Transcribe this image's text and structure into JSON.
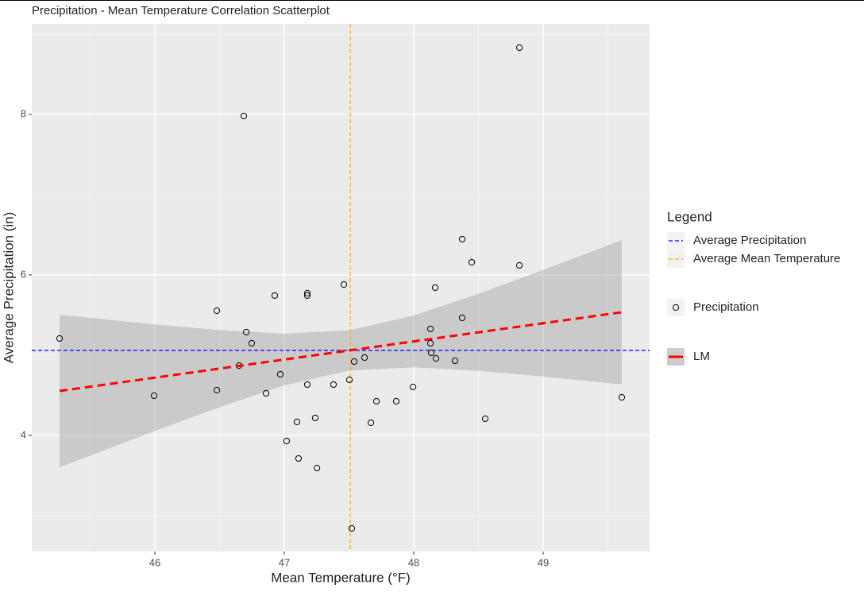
{
  "chart_data": {
    "type": "scatter",
    "title": "Precipitation - Mean Temperature Correlation Scatterplot",
    "x_label": "Mean Temperature (°F)",
    "y_label": "Average Precipitation (in)",
    "xlim": [
      45.049,
      49.822
    ],
    "ylim": [
      2.554,
      9.129
    ],
    "xticks": [
      46,
      47,
      48,
      49
    ],
    "yticks": [
      4,
      6,
      8
    ],
    "grid": true,
    "legend_title": "Legend",
    "legend_position": "right",
    "name": "Precipitation",
    "color": "#000000",
    "x": [
      45.264,
      45.994,
      46.479,
      46.479,
      46.687,
      46.706,
      46.65,
      46.748,
      46.859,
      46.926,
      46.969,
      47.018,
      47.098,
      47.11,
      47.178,
      47.178,
      47.178,
      47.239,
      47.252,
      47.38,
      47.46,
      47.503,
      47.521,
      47.54,
      47.62,
      47.669,
      47.712,
      47.865,
      47.994,
      48.129,
      48.129,
      48.135,
      48.166,
      48.172,
      48.319,
      48.374,
      48.374,
      48.448,
      48.552,
      48.816,
      48.816,
      49.607
    ],
    "values": [
      5.208,
      4.495,
      5.554,
      4.564,
      7.98,
      5.287,
      4.871,
      5.149,
      4.525,
      5.743,
      4.762,
      3.931,
      4.168,
      3.713,
      5.772,
      5.743,
      4.634,
      4.218,
      3.594,
      4.634,
      5.881,
      4.693,
      2.842,
      4.921,
      4.97,
      4.158,
      4.426,
      4.426,
      4.604,
      5.327,
      5.149,
      5.03,
      5.842,
      4.96,
      4.931,
      6.446,
      5.465,
      6.158,
      4.208,
      6.119,
      8.832,
      4.475
    ],
    "hlines": [
      {
        "name": "Average Precipitation",
        "value": 5.059,
        "color": "#0000ff"
      }
    ],
    "vlines": [
      {
        "name": "Average Mean Temperature",
        "value": 47.509,
        "color": "#ffa500"
      }
    ],
    "fit": {
      "name": "LM",
      "color": "#ff0000",
      "x": [
        45.264,
        46,
        46.5,
        47,
        47.5,
        48,
        48.5,
        49,
        49.607
      ],
      "values": [
        4.554,
        4.72,
        4.833,
        4.946,
        5.059,
        5.172,
        5.285,
        5.398,
        5.535
      ],
      "upper": [
        5.504,
        5.384,
        5.313,
        5.269,
        5.309,
        5.495,
        5.765,
        6.062,
        6.434
      ],
      "lower": [
        3.604,
        4.056,
        4.353,
        4.623,
        4.809,
        4.849,
        4.805,
        4.734,
        4.636
      ]
    }
  }
}
